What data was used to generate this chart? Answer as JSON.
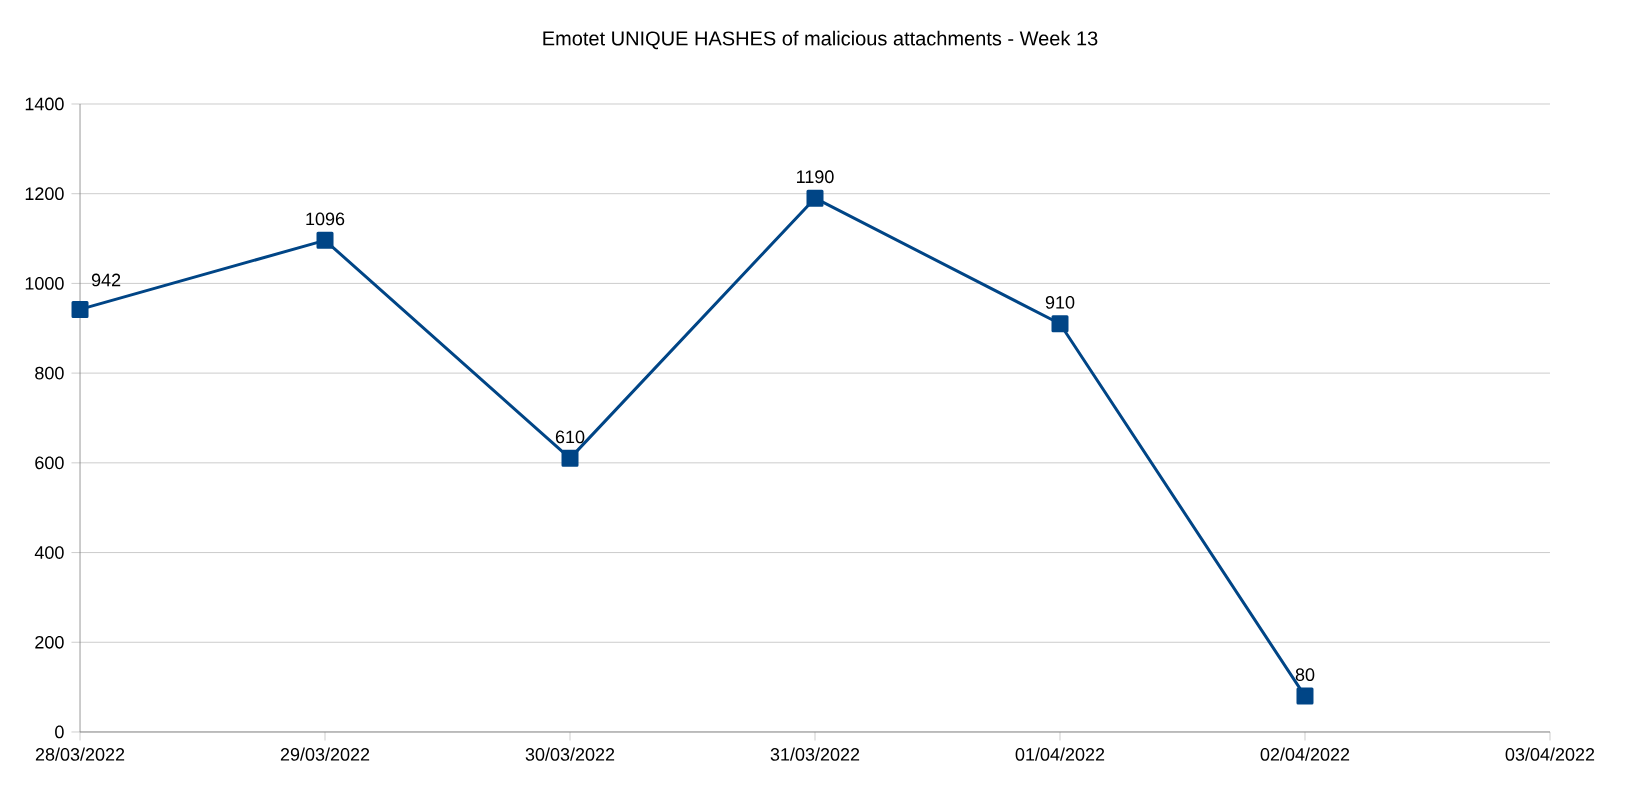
{
  "chart_data": {
    "type": "line",
    "title": "Emotet UNIQUE HASHES of malicious attachments - Week 13",
    "x": [
      "2022-03-28",
      "2022-03-29",
      "2022-03-30",
      "2022-03-31",
      "2022-04-01",
      "2022-04-02"
    ],
    "values": [
      942,
      1096,
      610,
      1190,
      910,
      80
    ],
    "color": "#004586",
    "xlim": [
      "2022-03-28",
      "2022-04-03"
    ],
    "xticks": [
      {
        "value": "2022-03-28",
        "label": "28/03/2022"
      },
      {
        "value": "2022-03-29",
        "label": "29/03/2022"
      },
      {
        "value": "2022-03-30",
        "label": "30/03/2022"
      },
      {
        "value": "2022-03-31",
        "label": "31/03/2022"
      },
      {
        "value": "2022-04-01",
        "label": "01/04/2022"
      },
      {
        "value": "2022-04-02",
        "label": "02/04/2022"
      },
      {
        "value": "2022-04-03",
        "label": "03/04/2022"
      }
    ],
    "ylim": [
      0,
      1400
    ],
    "yticks": [
      0,
      200,
      400,
      600,
      800,
      1000,
      1200,
      1400
    ],
    "grid": "y",
    "marker": "square",
    "line_style": "solid",
    "data_labels": true
  }
}
